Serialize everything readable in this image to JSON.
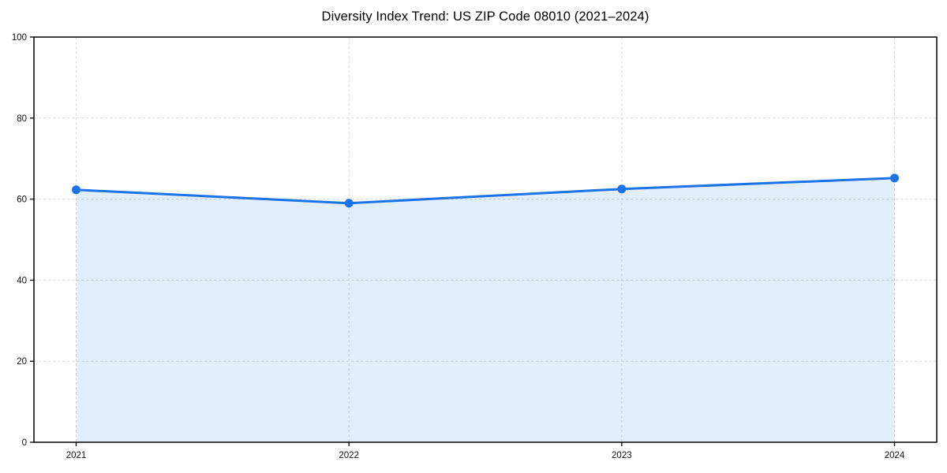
{
  "page": {
    "background_color": "#ffffff"
  },
  "chart_data": {
    "type": "area",
    "title": "Diversity Index Trend: US ZIP Code 08010 (2021–2024)",
    "x": [
      2021,
      2022,
      2023,
      2024
    ],
    "x_tick_labels": [
      "2021",
      "2022",
      "2023",
      "2024"
    ],
    "series": [
      {
        "name": "Diversity Index",
        "values": [
          62.3,
          59.0,
          62.5,
          65.2
        ]
      }
    ],
    "xlabel": "",
    "ylabel": "",
    "ylim": [
      0,
      100
    ],
    "yticks": [
      0,
      20,
      40,
      60,
      80,
      100
    ],
    "y_tick_labels": [
      "0",
      "20",
      "40",
      "60",
      "80",
      "100"
    ],
    "grid": "dashed-both-axes",
    "legend": "none",
    "colors": {
      "line": "#1a73e8",
      "marker": "#1a73e8",
      "area_fill": "rgba(26,115,232,0.12)",
      "gridline": "#d9d9d9",
      "spine": "#000000",
      "tick_label": "#111111",
      "title": "#000000"
    }
  }
}
